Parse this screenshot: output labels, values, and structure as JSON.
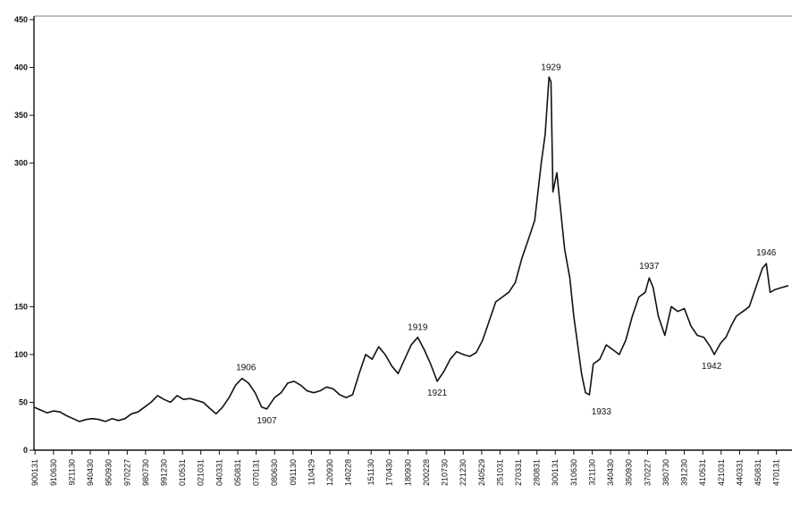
{
  "chart_data": {
    "type": "line",
    "title": "",
    "xlabel": "",
    "ylabel": "",
    "ylim": [
      0,
      450
    ],
    "xlim": [
      1890.0,
      1948.0
    ],
    "y_ticks": [
      0,
      50,
      100,
      150,
      300,
      350,
      400,
      450
    ],
    "y_tick_labels": [
      "0",
      "50",
      "100",
      "150",
      "300",
      "350",
      "400",
      "450"
    ],
    "x_tick_labels": [
      "900131",
      "910630",
      "921130",
      "940430",
      "950930",
      "970227",
      "980730",
      "991230",
      "010531",
      "021031",
      "040331",
      "050831",
      "070131",
      "080630",
      "091130",
      "110429",
      "120930",
      "140228",
      "151130",
      "170430",
      "180930",
      "200228",
      "210730",
      "221230",
      "240529",
      "251031",
      "270331",
      "280831",
      "300131",
      "310630",
      "321130",
      "340430",
      "350930",
      "370227",
      "380730",
      "391230",
      "410531",
      "421031",
      "440331",
      "450831",
      "470131"
    ],
    "x_tick_values": [
      1890.08,
      1891.5,
      1892.92,
      1894.33,
      1895.75,
      1897.17,
      1898.58,
      1900.0,
      1901.42,
      1902.83,
      1904.25,
      1905.67,
      1907.08,
      1908.5,
      1909.92,
      1911.33,
      1912.75,
      1914.17,
      1915.92,
      1917.33,
      1918.75,
      1920.17,
      1921.58,
      1923.0,
      1924.42,
      1925.83,
      1927.25,
      1928.67,
      1930.08,
      1931.5,
      1932.92,
      1934.33,
      1935.75,
      1937.17,
      1938.58,
      1940.0,
      1941.42,
      1942.83,
      1944.25,
      1945.67,
      1947.08
    ],
    "grid": false,
    "legend": "none",
    "line_color": "#111111",
    "series": [
      {
        "x": [
          1890.0,
          1890.5,
          1891.0,
          1891.5,
          1892.0,
          1892.5,
          1893.0,
          1893.5,
          1894.0,
          1894.5,
          1895.0,
          1895.5,
          1896.0,
          1896.5,
          1897.0,
          1897.5,
          1898.0,
          1898.5,
          1899.0,
          1899.5,
          1900.0,
          1900.5,
          1901.0,
          1901.5,
          1902.0,
          1902.5,
          1903.0,
          1903.5,
          1904.0,
          1904.5,
          1905.0,
          1905.5,
          1906.0,
          1906.5,
          1907.0,
          1907.5,
          1907.9,
          1908.5,
          1909.0,
          1909.5,
          1910.0,
          1910.5,
          1911.0,
          1911.5,
          1912.0,
          1912.5,
          1913.0,
          1913.5,
          1914.0,
          1914.5,
          1915.0,
          1915.5,
          1916.0,
          1916.5,
          1917.0,
          1917.5,
          1918.0,
          1918.5,
          1919.0,
          1919.5,
          1920.0,
          1920.5,
          1921.0,
          1921.5,
          1922.0,
          1922.5,
          1923.0,
          1923.5,
          1924.0,
          1924.5,
          1925.0,
          1925.5,
          1926.0,
          1926.5,
          1927.0,
          1927.5,
          1928.0,
          1928.5,
          1929.0,
          1929.3,
          1929.6,
          1929.75,
          1929.9,
          1930.2,
          1930.5,
          1930.8,
          1931.2,
          1931.5,
          1931.8,
          1932.1,
          1932.4,
          1932.7,
          1933.0,
          1933.5,
          1934.0,
          1934.5,
          1935.0,
          1935.5,
          1936.0,
          1936.5,
          1937.0,
          1937.3,
          1937.6,
          1938.0,
          1938.5,
          1939.0,
          1939.5,
          1940.0,
          1940.5,
          1941.0,
          1941.5,
          1942.0,
          1942.3,
          1942.8,
          1943.2,
          1943.6,
          1944.0,
          1944.5,
          1945.0,
          1945.5,
          1946.0,
          1946.3,
          1946.6,
          1947.0,
          1947.5,
          1948.0
        ],
        "y": [
          45,
          42,
          39,
          41,
          40,
          36,
          33,
          30,
          32,
          33,
          32,
          30,
          33,
          31,
          33,
          38,
          40,
          45,
          50,
          57,
          53,
          50,
          57,
          53,
          54,
          52,
          50,
          44,
          38,
          45,
          55,
          68,
          75,
          70,
          60,
          45,
          43,
          55,
          60,
          70,
          72,
          68,
          62,
          60,
          62,
          66,
          64,
          58,
          55,
          58,
          80,
          100,
          95,
          108,
          100,
          88,
          80,
          95,
          110,
          118,
          105,
          90,
          72,
          82,
          95,
          103,
          100,
          98,
          102,
          115,
          135,
          155,
          160,
          165,
          175,
          200,
          220,
          240,
          300,
          330,
          390,
          385,
          270,
          290,
          250,
          210,
          180,
          140,
          110,
          80,
          60,
          58,
          90,
          95,
          110,
          105,
          100,
          115,
          140,
          160,
          165,
          180,
          170,
          140,
          120,
          150,
          145,
          148,
          130,
          120,
          118,
          108,
          100,
          112,
          118,
          130,
          140,
          145,
          150,
          170,
          190,
          195,
          165,
          168,
          170,
          172
        ]
      }
    ],
    "annotations": [
      {
        "text": "1906",
        "x": 1906.3,
        "y": 76
      },
      {
        "text": "1907",
        "x": 1907.9,
        "y": 43
      },
      {
        "text": "1919",
        "x": 1919.5,
        "y": 118
      },
      {
        "text": "1921",
        "x": 1921.0,
        "y": 72
      },
      {
        "text": "1929",
        "x": 1929.75,
        "y": 390
      },
      {
        "text": "1933",
        "x": 1932.8,
        "y": 58
      },
      {
        "text": "1937",
        "x": 1937.3,
        "y": 182
      },
      {
        "text": "1942",
        "x": 1942.1,
        "y": 100
      },
      {
        "text": "1946",
        "x": 1946.3,
        "y": 196
      }
    ]
  }
}
